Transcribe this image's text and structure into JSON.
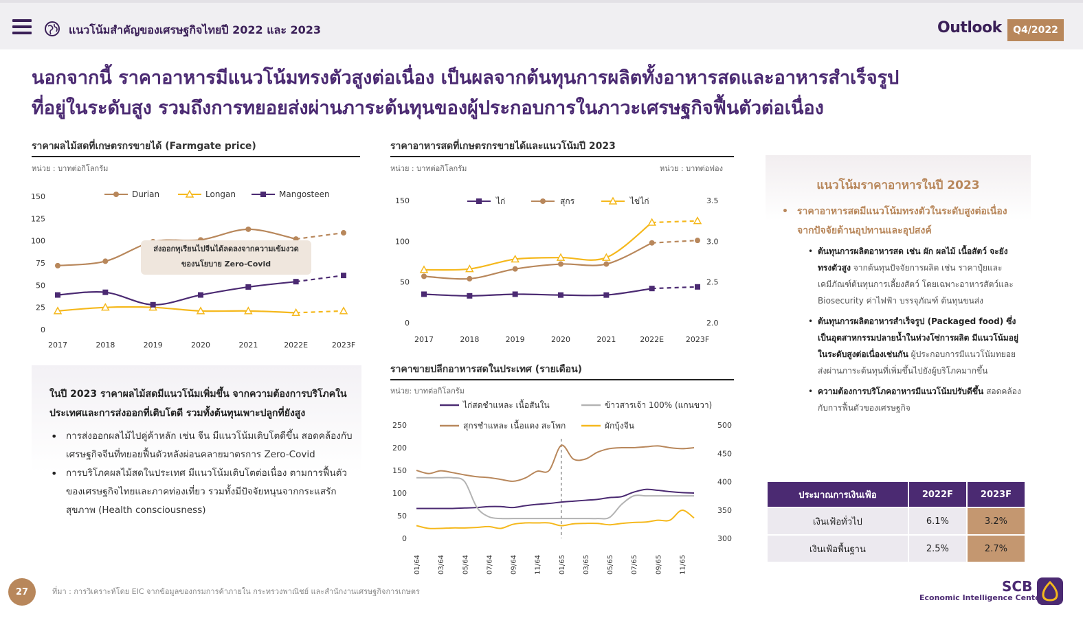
{
  "header": {
    "doc_title": "แนวโน้มสำคัญของเศรษฐกิจไทยปี 2022 และ 2023",
    "brand": "Outlook",
    "quarter": "Q4/2022"
  },
  "headline": {
    "line1": "นอกจากนี้ ราคาอาหารมีแนวโน้มทรงตัวสูงต่อเนื่อง เป็นผลจากต้นทุนการผลิตทั้งอาหารสดและอาหารสำเร็จรูป",
    "line2": "ที่อยู่ในระดับสูง รวมถึงการทยอยส่งผ่านภาระต้นทุนของผู้ประกอบการในภาวะเศรษฐกิจฟื้นตัวต่อเนื่อง"
  },
  "panels": {
    "fruit_title": "ราคาผลไม้สดที่เกษตรกรขายได้ (Farmgate price)",
    "fruit_unit": "หน่วย : บาทต่อกิโลกรัม",
    "fruit_annotation_line1": "ส่งออกทุเรียนไปจีนได้ลดลงจากความเข้มงวด",
    "fruit_annotation_line2": "ของนโยบาย Zero-Covid",
    "food_title": "ราคาอาหารสดที่เกษตรกรขายได้และแนวโน้มปี 2023",
    "food_unit_left": "หน่วย : บาทต่อกิโลกรัม",
    "food_unit_right": "หน่วย : บาทต่อฟอง",
    "retail_title": "ราคาขายปลีกอาหารสดในประเทศ (รายเดือน)",
    "retail_unit": "หน่วย: บาทต่อกิโลกรัม"
  },
  "note": {
    "head": "ในปี 2023 ราคาผลไม้สดมีแนวโน้มเพิ่มขึ้น จากความต้องการบริโภคในประเทศและการส่งออกที่เติบโตดี รวมทั้งต้นทุนเพาะปลูกที่ยังสูง",
    "items": [
      "การส่งออกผลไม้ไปคู่ค้าหลัก เช่น จีน มีแนวโน้มเติบโตดีขึ้น สอดคล้องกับเศรษฐกิจจีนที่ทยอยฟื้นตัวหลังผ่อนคลายมาตรการ Zero-Covid",
      "การบริโภคผลไม้สดในประเทศ มีแนวโน้มเติบโตต่อเนื่อง ตามการฟื้นตัวของเศรษฐกิจไทยและภาคท่องเที่ยว รวมทั้งมีปัจจัยหนุนจากกระแสรักสุขภาพ (Health consciousness)"
    ]
  },
  "trend": {
    "title": "แนวโน้มราคาอาหารในปี 2023",
    "main": "ราคาอาหารสดมีแนวโน้มทรงตัวในระดับสูงต่อเนื่อง จากปัจจัยด้านอุปทานและอุปสงค์",
    "items": [
      {
        "bold": "ต้นทุนการผลิตอาหารสด เช่น ผัก ผลไม้ เนื้อสัตว์ จะยังทรงตัวสูง",
        "rest": "จากต้นทุนปัจจัยการผลิต เช่น ราคาปุ๋ยและเคมีภัณฑ์ต้นทุนการเลี้ยงสัตว์ โดยเฉพาะอาหารสัตว์และ Biosecurity ค่าไฟฟ้า บรรจุภัณฑ์ ต้นทุนขนส่ง"
      },
      {
        "bold": "ต้นทุนการผลิตอาหารสำเร็จรูป (Packaged food) ซึ่งเป็นอุตสาหกรรมปลายน้ำในห่วงโซ่การผลิต มีแนวโน้มอยู่ในระดับสูงต่อเนื่องเช่นกัน",
        "rest": "ผู้ประกอบการมีแนวโน้มทยอยส่งผ่านภาระต้นทุนที่เพิ่มขึ้นไปยังผู้บริโภคมากขึ้น"
      },
      {
        "bold": "ความต้องการบริโภคอาหารมีแนวโน้มปรับดีขึ้น",
        "rest": "สอดคล้องกับการฟื้นตัวของเศรษฐกิจ"
      }
    ]
  },
  "inflation_table": {
    "headers": [
      "ประมาณการเงินเฟ้อ",
      "2022F",
      "2023F"
    ],
    "rows": [
      {
        "label": "เงินเฟ้อทั่วไป",
        "v2022": "6.1%",
        "v2023": "3.2%"
      },
      {
        "label": "เงินเฟ้อพื้นฐาน",
        "v2022": "2.5%",
        "v2023": "2.7%"
      }
    ]
  },
  "footer": {
    "page": "27",
    "source": "ที่มา : การวิเคราะห์โดย EIC จากข้อมูลของกรมการค้าภายใน กระทรวงพาณิชย์ และสำนักงานเศรษฐกิจการเกษตร",
    "brand": "SCB",
    "sub_brand": "Economic Intelligence Center"
  },
  "colors": {
    "purple": "#4b2a72",
    "brown": "#b8875b",
    "yellow": "#f5b81c",
    "gray": "#b3b3b3"
  },
  "chart_data": [
    {
      "type": "line",
      "title": "ราคาผลไม้สดที่เกษตรกรขายได้ (Farmgate price)",
      "categories": [
        "2017",
        "2018",
        "2019",
        "2020",
        "2021",
        "2022E",
        "2023F"
      ],
      "forecast_from_index": 5,
      "ylim": [
        0,
        150
      ],
      "yticks": [
        0,
        25,
        50,
        75,
        100,
        125,
        150
      ],
      "legend": "top",
      "series": [
        {
          "name": "Durian",
          "color": "#b8875b",
          "marker": "circle",
          "values": [
            72,
            77,
            99,
            101,
            113,
            102,
            109
          ]
        },
        {
          "name": "Longan",
          "color": "#f5b81c",
          "marker": "triangle",
          "values": [
            21,
            25,
            25,
            21,
            21,
            19,
            21
          ]
        },
        {
          "name": "Mangosteen",
          "color": "#4b2a72",
          "marker": "square",
          "values": [
            39,
            42,
            28,
            39,
            48,
            54,
            61
          ]
        }
      ]
    },
    {
      "type": "line",
      "title": "ราคาอาหารสดที่เกษตรกรขายได้และแนวโน้มปี 2023",
      "categories": [
        "2017",
        "2018",
        "2019",
        "2020",
        "2021",
        "2022E",
        "2023F"
      ],
      "forecast_from_index": 5,
      "ylim": [
        0,
        150
      ],
      "yticks": [
        0,
        50,
        100,
        150
      ],
      "y2lim": [
        2.0,
        3.5
      ],
      "y2ticks": [
        "2.0",
        "2.5",
        "3.0",
        "3.5"
      ],
      "legend": "top",
      "series": [
        {
          "name": "ไก่",
          "color": "#4b2a72",
          "marker": "square",
          "axis": "left",
          "values": [
            35,
            33,
            35,
            34,
            34,
            42,
            44
          ]
        },
        {
          "name": "สุกร",
          "color": "#b8875b",
          "marker": "circle",
          "axis": "left",
          "values": [
            57,
            54,
            66,
            72,
            72,
            98,
            101
          ]
        },
        {
          "name": "ไข่ไก่",
          "color": "#f5b81c",
          "marker": "triangle",
          "axis": "right",
          "values": [
            2.65,
            2.66,
            2.78,
            2.8,
            2.8,
            3.23,
            3.25
          ]
        }
      ]
    },
    {
      "type": "line",
      "title": "ราคาขายปลีกอาหารสดในประเทศ (รายเดือน)",
      "x": [
        "01/64",
        "02/64",
        "03/64",
        "04/64",
        "05/64",
        "06/64",
        "07/64",
        "08/64",
        "09/64",
        "10/64",
        "11/64",
        "12/64",
        "01/65",
        "02/65",
        "03/65",
        "04/65",
        "05/65",
        "06/65",
        "07/65",
        "08/65",
        "09/65",
        "10/65",
        "11/65",
        "12/65"
      ],
      "xticks": [
        "01/64",
        "03/64",
        "05/64",
        "07/64",
        "09/64",
        "11/64",
        "01/65",
        "03/65",
        "05/65",
        "07/65",
        "09/65",
        "11/65"
      ],
      "ylim": [
        0,
        250
      ],
      "yticks": [
        0,
        50,
        100,
        150,
        200,
        250
      ],
      "y2lim": [
        300,
        500
      ],
      "y2ticks": [
        300,
        350,
        400,
        450,
        500
      ],
      "legend": "top",
      "marker_line_at": "01/65",
      "series": [
        {
          "name": "ไก่สดชำแหละ เนื้อสันใน",
          "color": "#4b2a72",
          "axis": "left",
          "values": [
            66,
            66,
            66,
            66,
            67,
            68,
            70,
            70,
            68,
            72,
            75,
            77,
            80,
            82,
            84,
            86,
            90,
            92,
            102,
            108,
            106,
            103,
            101,
            100
          ]
        },
        {
          "name": "สุกรชำแหละ เนื้อแดง สะโพก",
          "color": "#b8875b",
          "axis": "left",
          "values": [
            150,
            143,
            149,
            145,
            140,
            136,
            134,
            130,
            126,
            133,
            148,
            150,
            205,
            175,
            175,
            190,
            198,
            200,
            200,
            202,
            204,
            200,
            198,
            200
          ]
        },
        {
          "name": "ข้าวสารเจ้า 100% (แกนขวา)",
          "color": "#b3b3b3",
          "axis": "right",
          "values": [
            407,
            407,
            407,
            407,
            400,
            355,
            338,
            335,
            335,
            335,
            335,
            335,
            335,
            335,
            335,
            335,
            337,
            360,
            375,
            375,
            375,
            375,
            375,
            375
          ]
        },
        {
          "name": "ผักบุ้งจีน",
          "color": "#f5b81c",
          "axis": "left",
          "values": [
            28,
            22,
            22,
            23,
            23,
            24,
            26,
            22,
            31,
            34,
            34,
            34,
            28,
            32,
            33,
            33,
            30,
            33,
            35,
            36,
            40,
            40,
            62,
            45
          ]
        }
      ]
    }
  ]
}
